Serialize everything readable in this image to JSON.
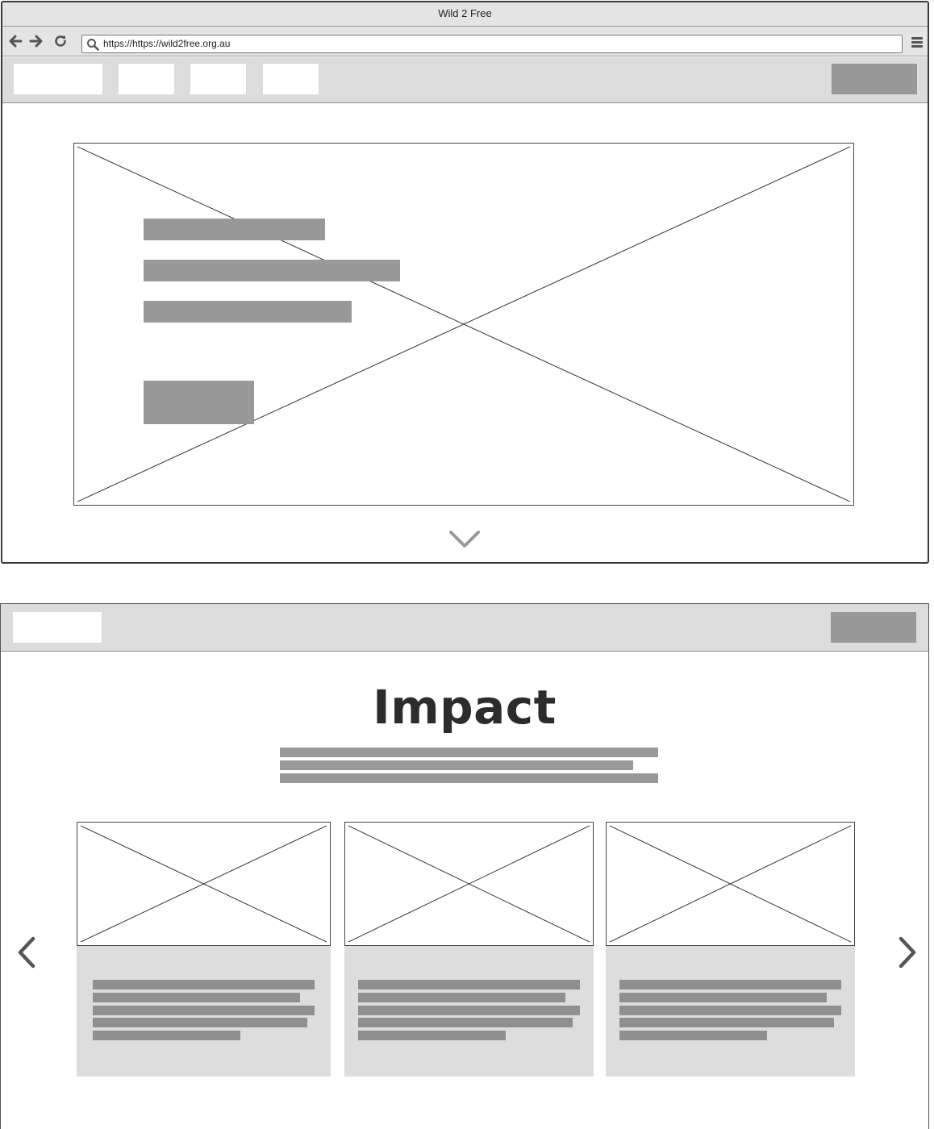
{
  "browser": {
    "window_title": "Wild 2 Free",
    "url": "https://https://wild2free.org.au",
    "icons": [
      "back-arrow-icon",
      "forward-arrow-icon",
      "refresh-icon",
      "search-icon",
      "hamburger-menu-icon"
    ]
  },
  "frame1": {
    "hero_image_icon": "image-placeholder",
    "scroll_icon": "chevron-down-icon"
  },
  "frame2": {
    "section_title": "Impact",
    "carousel_icons": [
      "chevron-left-icon",
      "chevron-right-icon"
    ],
    "card_count": 3
  },
  "colors": {
    "chrome_bg": "#e4e4e4",
    "nav_bg": "#dcdcdc",
    "placeholder_bar": "#999999",
    "card_bg": "#dddddd",
    "border": "#444444"
  }
}
